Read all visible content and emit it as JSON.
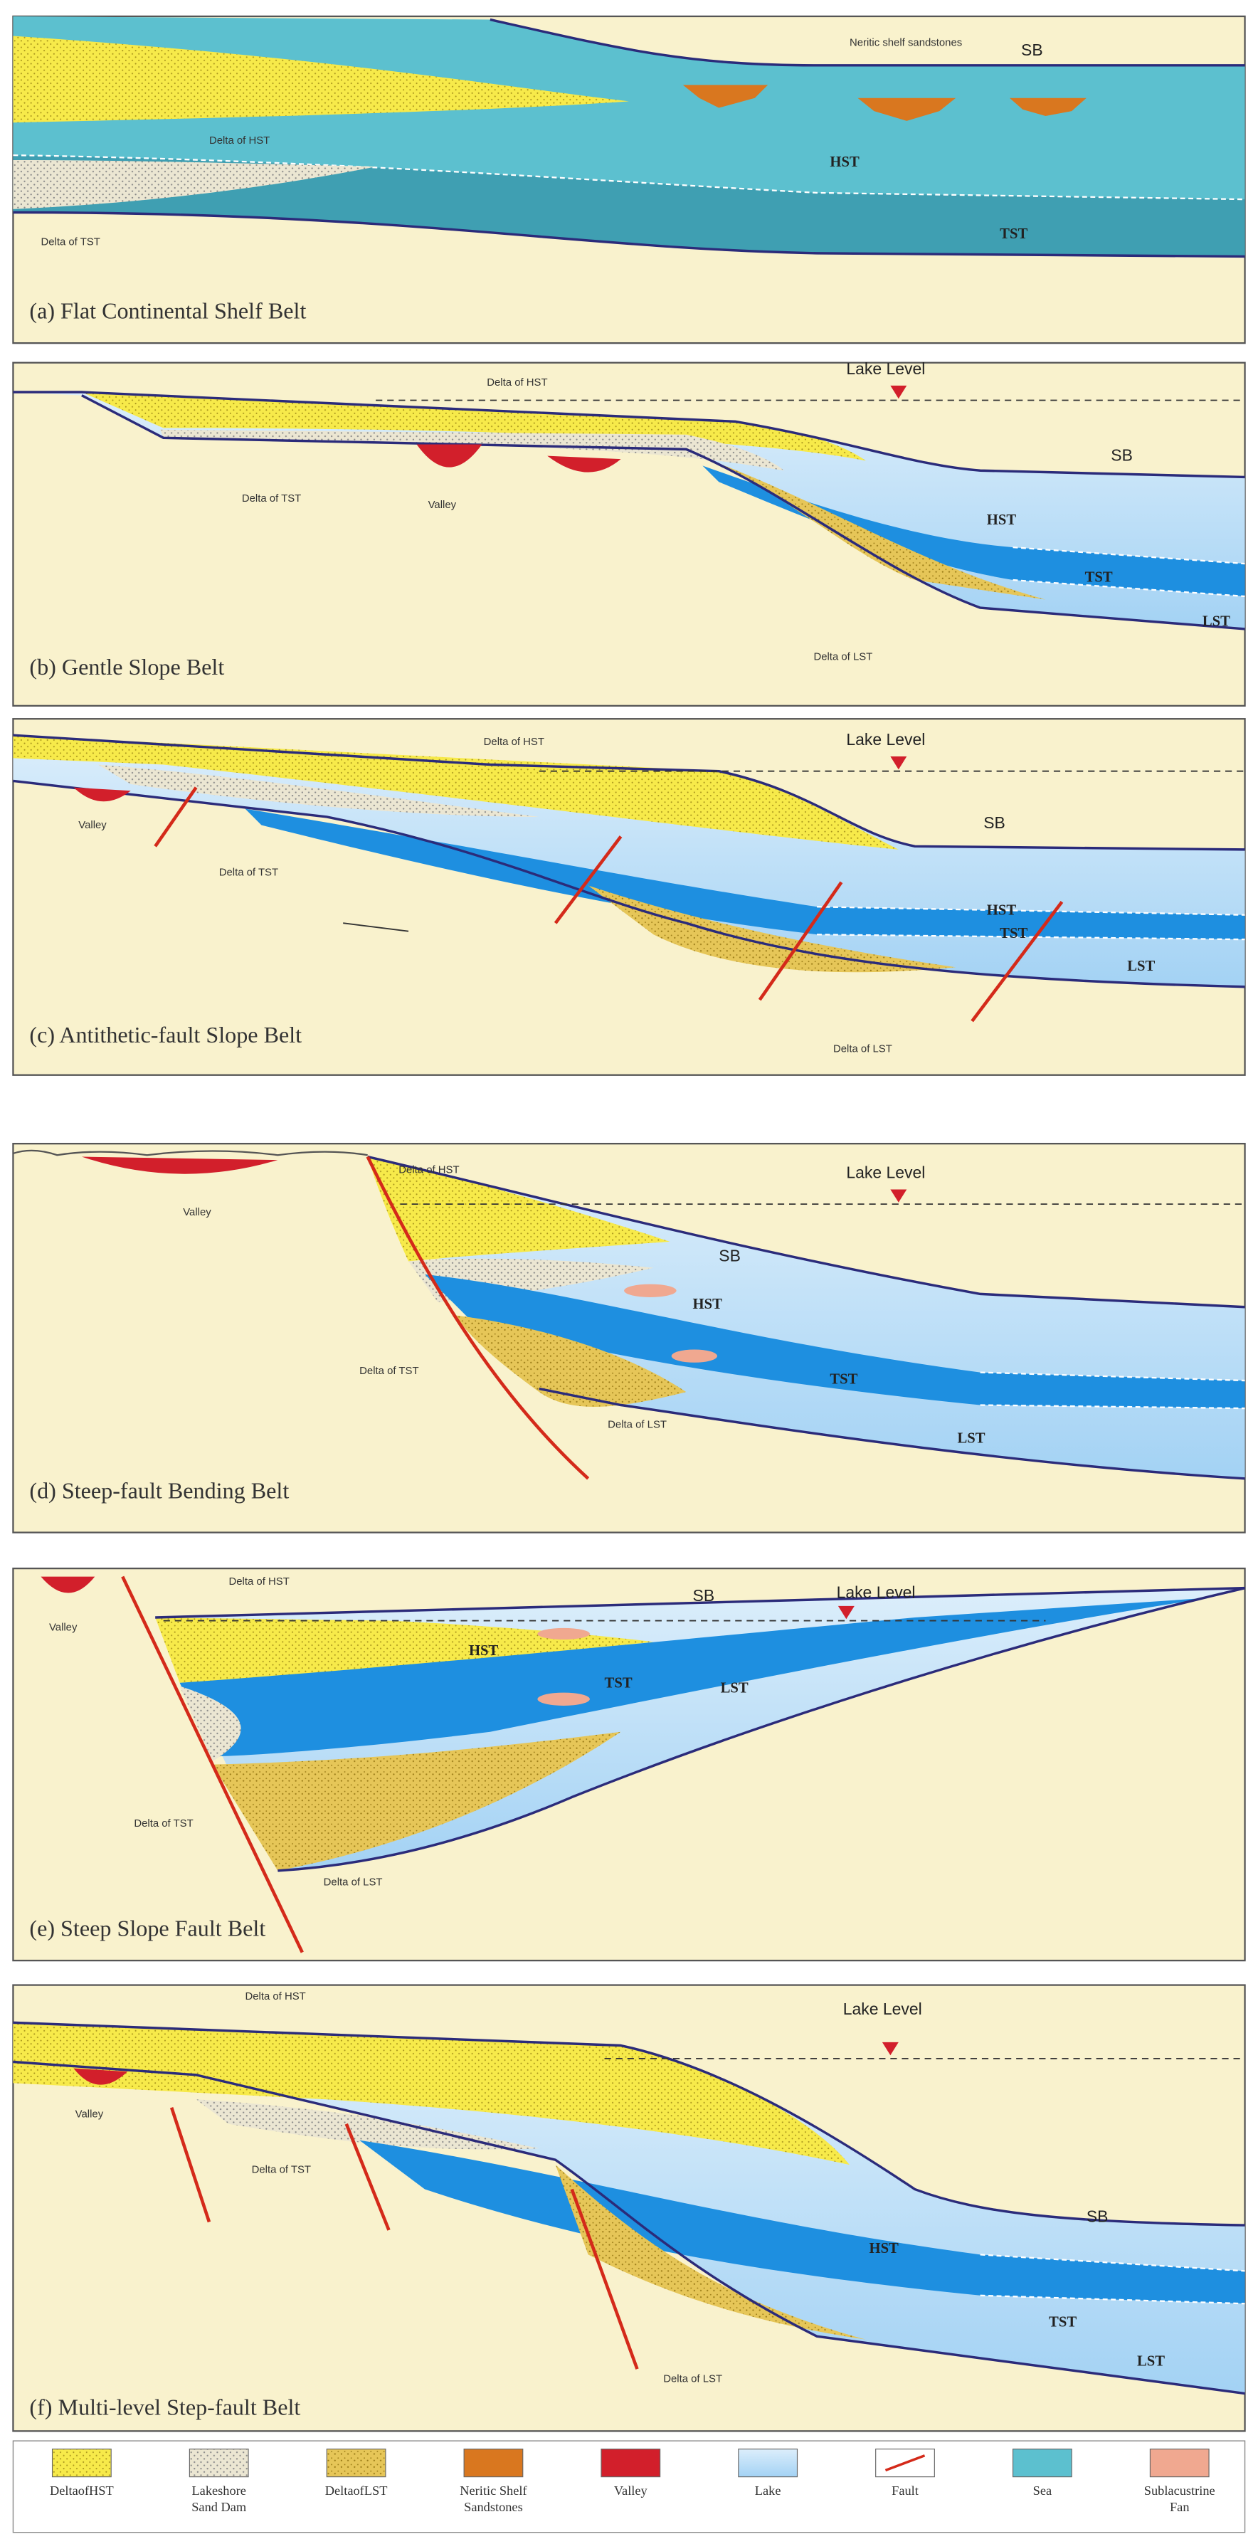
{
  "panels": [
    {
      "caption": "(a) Flat Continental Shelf Belt",
      "labels": [
        "Neritic shelf sandstones",
        "SB",
        "Delta of HST",
        "HST",
        "Delta of TST",
        "TST"
      ]
    },
    {
      "caption": "(b) Gentle Slope Belt",
      "labels": [
        "Lake Level",
        "Delta of HST",
        "SB",
        "Delta of TST",
        "Valley",
        "HST",
        "TST",
        "LST",
        "Delta of LST"
      ]
    },
    {
      "caption": "(c) Antithetic-fault Slope Belt",
      "labels": [
        "Delta of HST",
        "Lake Level",
        "SB",
        "Valley",
        "Delta of TST",
        "HST",
        "TST",
        "LST",
        "Delta of LST"
      ]
    },
    {
      "caption": "(d) Steep-fault Bending Belt",
      "labels": [
        "Delta of HST",
        "Lake Level",
        "Valley",
        "SB",
        "HST",
        "Delta of TST",
        "TST",
        "Delta of LST",
        "LST"
      ]
    },
    {
      "caption": "(e) Steep Slope Fault Belt",
      "labels": [
        "Delta of HST",
        "SB",
        "Lake Level",
        "Valley",
        "HST",
        "TST",
        "LST",
        "Delta of TST",
        "Delta of LST"
      ]
    },
    {
      "caption": "(f) Multi-level Step-fault Belt",
      "labels": [
        "Delta of HST",
        "Lake Level",
        "Valley",
        "Delta of TST",
        "SB",
        "HST",
        "TST",
        "LST",
        "Delta of LST"
      ]
    }
  ],
  "legend": [
    {
      "lines": [
        "DeltaofHST"
      ]
    },
    {
      "lines": [
        "Lakeshore",
        "Sand Dam"
      ]
    },
    {
      "lines": [
        "DeltaofLST"
      ]
    },
    {
      "lines": [
        "Neritic Shelf",
        "Sandstones"
      ]
    },
    {
      "lines": [
        "Valley"
      ]
    },
    {
      "lines": [
        "Lake"
      ]
    },
    {
      "lines": [
        "Fault"
      ]
    },
    {
      "lines": [
        "Sea"
      ]
    },
    {
      "lines": [
        "Sublacustrine",
        "Fan"
      ]
    }
  ]
}
